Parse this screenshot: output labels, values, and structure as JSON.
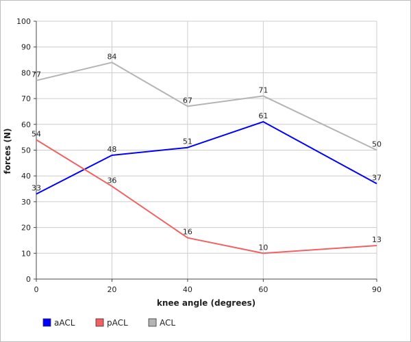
{
  "chart_data": {
    "type": "line",
    "xlabel": "knee angle (degrees)",
    "ylabel": "forces (N)",
    "x": [
      0,
      20,
      40,
      60,
      90
    ],
    "xticks": [
      0,
      20,
      40,
      60,
      90
    ],
    "ylim": [
      0,
      100
    ],
    "yticks": [
      0,
      10,
      20,
      30,
      40,
      50,
      60,
      70,
      80,
      90,
      100
    ],
    "grid": true,
    "legend_position": "bottom-left",
    "series": [
      {
        "name": "aACL",
        "color": "#0000ff",
        "values": [
          33,
          48,
          51,
          61,
          37
        ]
      },
      {
        "name": "pACL",
        "color": "#f26161",
        "values": [
          54,
          36,
          16,
          10,
          13
        ]
      },
      {
        "name": "ACL",
        "color": "#b4b4b4",
        "values": [
          77,
          84,
          67,
          71,
          50
        ]
      }
    ]
  }
}
